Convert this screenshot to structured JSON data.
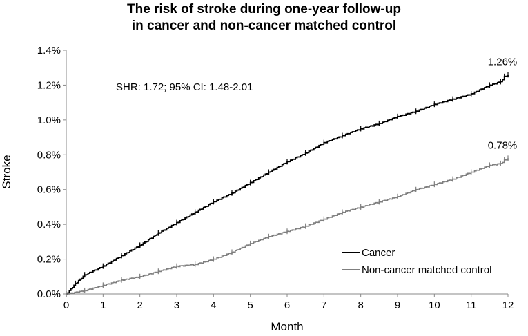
{
  "chart_data": {
    "type": "line",
    "title_lines": [
      "The risk of stroke during one-year follow-up",
      "in cancer and non-cancer matched control"
    ],
    "xlabel": "Month",
    "ylabel": "Stroke",
    "xlim": [
      0,
      12
    ],
    "ylim": [
      0,
      1.4
    ],
    "x_ticks": [
      0,
      1,
      2,
      3,
      4,
      5,
      6,
      7,
      8,
      9,
      10,
      11,
      12
    ],
    "x_tick_labels": [
      "0",
      "1",
      "2",
      "3",
      "4",
      "5",
      "6",
      "7",
      "8",
      "9",
      "10",
      "11",
      "12"
    ],
    "y_ticks": [
      0,
      0.2,
      0.4,
      0.6,
      0.8,
      1.0,
      1.2,
      1.4
    ],
    "y_tick_labels": [
      "0.0%",
      "0.2%",
      "0.4%",
      "0.6%",
      "0.8%",
      "1.0%",
      "1.2%",
      "1.4%"
    ],
    "annotation": "SHR: 1.72; 95% CI: 1.48-2.01",
    "legend_position": "bottom-right",
    "series": [
      {
        "name": "Cancer",
        "color": "#000000",
        "end_label": "1.26%",
        "x": [
          0,
          0.25,
          0.5,
          1,
          1.5,
          2,
          2.5,
          3,
          3.5,
          4,
          4.5,
          5,
          5.5,
          6,
          6.5,
          7,
          7.5,
          8,
          8.5,
          9,
          9.5,
          10,
          10.5,
          11,
          11.5,
          11.8,
          11.9,
          12
        ],
        "values": [
          0.0,
          0.06,
          0.11,
          0.16,
          0.22,
          0.28,
          0.35,
          0.41,
          0.47,
          0.53,
          0.58,
          0.64,
          0.7,
          0.76,
          0.81,
          0.87,
          0.91,
          0.95,
          0.98,
          1.02,
          1.05,
          1.09,
          1.12,
          1.15,
          1.2,
          1.22,
          1.25,
          1.26
        ]
      },
      {
        "name": "Non-cancer matched control",
        "color": "#7f7f7f",
        "end_label": "0.78%",
        "x": [
          0,
          0.5,
          1,
          1.5,
          2,
          2.5,
          3,
          3.5,
          4,
          4.5,
          5,
          5.5,
          6,
          6.5,
          7,
          7.5,
          8,
          8.5,
          9,
          9.5,
          10,
          10.5,
          11,
          11.5,
          11.8,
          11.9,
          12
        ],
        "values": [
          0.0,
          0.02,
          0.05,
          0.08,
          0.1,
          0.13,
          0.16,
          0.17,
          0.2,
          0.24,
          0.29,
          0.33,
          0.36,
          0.39,
          0.43,
          0.47,
          0.5,
          0.53,
          0.56,
          0.6,
          0.63,
          0.66,
          0.7,
          0.74,
          0.75,
          0.77,
          0.78
        ]
      }
    ]
  }
}
